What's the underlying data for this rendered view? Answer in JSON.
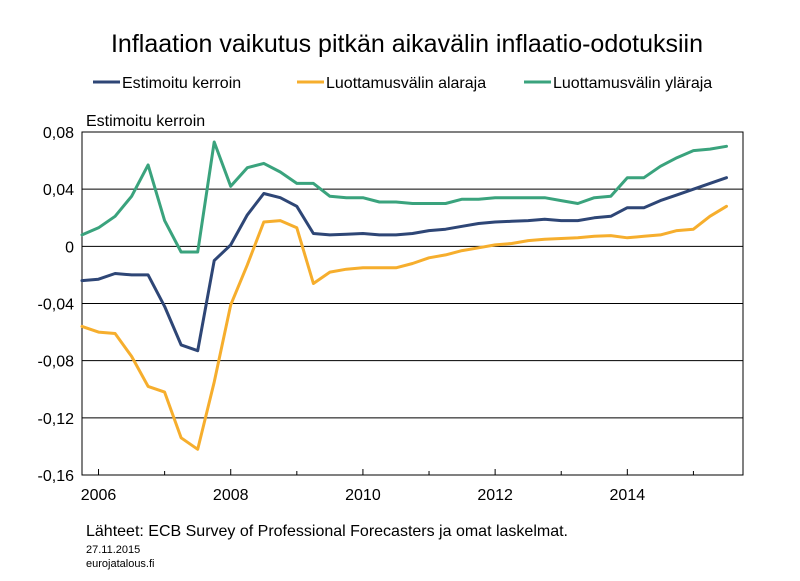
{
  "chart_data": {
    "type": "line",
    "title": "Inflaation vaikutus pitkän aikavälin inflaatio-odotuksiin",
    "ylabel": "Estimoitu kerroin",
    "xlabel": "",
    "xlim": [
      2005.75,
      2015.75
    ],
    "ylim": [
      -0.16,
      0.08
    ],
    "yticks": [
      0.08,
      0.04,
      0,
      -0.04,
      -0.08,
      -0.12,
      -0.16
    ],
    "ytick_labels": [
      "0,08",
      "0,04",
      "0",
      "-0,04",
      "-0,08",
      "-0,12",
      "-0,16"
    ],
    "xticks": [
      2006,
      2008,
      2010,
      2012,
      2014
    ],
    "xtick_labels": [
      "2006",
      "2008",
      "2010",
      "2012",
      "2014"
    ],
    "grid": "horizontal",
    "legend_position": "top",
    "x": [
      2005.75,
      2006.0,
      2006.25,
      2006.5,
      2006.75,
      2007.0,
      2007.25,
      2007.5,
      2007.75,
      2008.0,
      2008.25,
      2008.5,
      2008.75,
      2009.0,
      2009.25,
      2009.5,
      2009.75,
      2010.0,
      2010.25,
      2010.5,
      2010.75,
      2011.0,
      2011.25,
      2011.5,
      2011.75,
      2012.0,
      2012.25,
      2012.5,
      2012.75,
      2013.0,
      2013.25,
      2013.5,
      2013.75,
      2014.0,
      2014.25,
      2014.5,
      2014.75,
      2015.0,
      2015.25,
      2015.5
    ],
    "series": [
      {
        "name": "Estimoitu kerroin",
        "color": "#2e4676",
        "values": [
          -0.024,
          -0.023,
          -0.019,
          -0.02,
          -0.02,
          -0.042,
          -0.069,
          -0.073,
          -0.01,
          0.001,
          0.022,
          0.037,
          0.034,
          0.028,
          0.009,
          0.008,
          0.0085,
          0.009,
          0.008,
          0.008,
          0.009,
          0.011,
          0.012,
          0.014,
          0.016,
          0.017,
          0.0175,
          0.018,
          0.019,
          0.018,
          0.018,
          0.02,
          0.021,
          0.027,
          0.027,
          0.032,
          0.036,
          0.04,
          0.044,
          0.048
        ]
      },
      {
        "name": "Luottamusvälin alaraja",
        "color": "#f6ae2d",
        "values": [
          -0.056,
          -0.06,
          -0.061,
          -0.077,
          -0.098,
          -0.102,
          -0.134,
          -0.142,
          -0.095,
          -0.041,
          -0.013,
          0.017,
          0.018,
          0.013,
          -0.026,
          -0.018,
          -0.016,
          -0.015,
          -0.015,
          -0.015,
          -0.012,
          -0.008,
          -0.006,
          -0.003,
          -0.001,
          0.001,
          0.002,
          0.004,
          0.005,
          0.0055,
          0.006,
          0.007,
          0.0075,
          0.006,
          0.007,
          0.008,
          0.011,
          0.012,
          0.021,
          0.028
        ]
      },
      {
        "name": "Luottamusvälin yläraja",
        "color": "#3aa37d",
        "values": [
          0.008,
          0.013,
          0.021,
          0.035,
          0.057,
          0.018,
          -0.004,
          -0.004,
          0.073,
          0.042,
          0.055,
          0.058,
          0.052,
          0.044,
          0.044,
          0.035,
          0.034,
          0.034,
          0.031,
          0.031,
          0.03,
          0.03,
          0.03,
          0.033,
          0.033,
          0.034,
          0.034,
          0.034,
          0.034,
          0.032,
          0.03,
          0.034,
          0.035,
          0.048,
          0.048,
          0.056,
          0.062,
          0.067,
          0.068,
          0.07
        ]
      }
    ]
  },
  "source": "Lähteet: ECB Survey of Professional Forecasters ja omat laskelmat.",
  "date": "27.11.2015",
  "site": "eurojatalous.fi"
}
